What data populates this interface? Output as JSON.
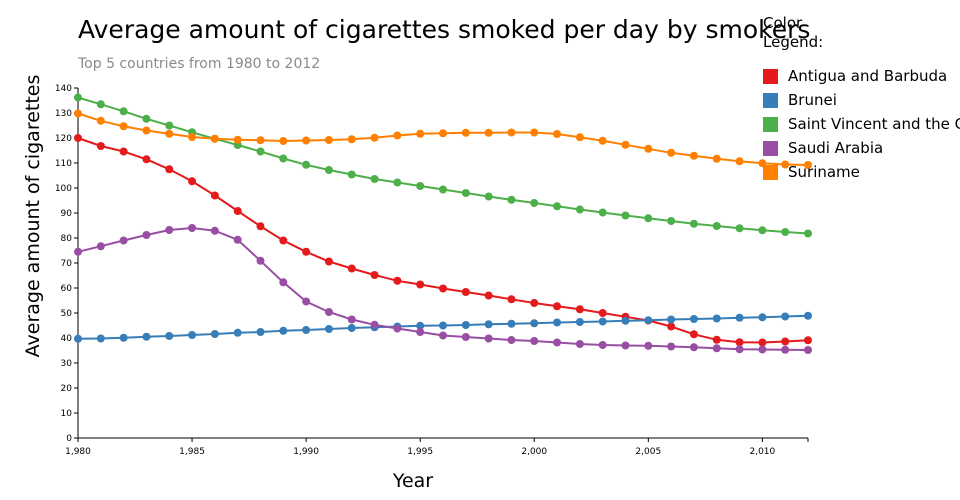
{
  "chart_data": {
    "type": "line",
    "title": "Average amount of cigarettes smoked per day by smokers",
    "subtitle": "Top 5 countries from 1980 to 2012",
    "xlabel": "Year",
    "ylabel": "Average amount of cigarettes",
    "legend_title_lines": [
      "Color",
      "Legend:"
    ],
    "legend_position": "top-right",
    "x": [
      1980,
      1981,
      1982,
      1983,
      1984,
      1985,
      1986,
      1987,
      1988,
      1989,
      1990,
      1991,
      1992,
      1993,
      1994,
      1995,
      1996,
      1997,
      1998,
      1999,
      2000,
      2001,
      2002,
      2003,
      2004,
      2005,
      2006,
      2007,
      2008,
      2009,
      2010,
      2011,
      2012
    ],
    "xlim": [
      1980,
      2012
    ],
    "ylim": [
      0,
      140
    ],
    "x_ticks": [
      1980,
      1985,
      1990,
      1995,
      2000,
      2005,
      2010
    ],
    "x_tick_labels": [
      "1,980",
      "1,985",
      "1,990",
      "1,995",
      "2,000",
      "2,005",
      "2,010"
    ],
    "y_ticks": [
      0,
      10,
      20,
      30,
      40,
      50,
      60,
      70,
      80,
      90,
      100,
      110,
      120,
      130,
      140
    ],
    "grid": false,
    "series": [
      {
        "name": "Antigua and Barbuda",
        "color": "#e41a1c",
        "values": [
          120,
          116.8,
          114.6,
          111.5,
          107.5,
          102.7,
          97,
          90.8,
          84.7,
          79,
          74.5,
          70.6,
          67.8,
          65.2,
          62.9,
          61.4,
          59.8,
          58.4,
          57,
          55.5,
          54,
          52.7,
          51.5,
          50,
          48.5,
          47,
          44.6,
          41.5,
          39.3,
          38.3,
          38.2,
          38.6,
          39.1
        ]
      },
      {
        "name": "Brunei",
        "color": "#377eb8",
        "values": [
          39.7,
          39.8,
          40.1,
          40.5,
          40.8,
          41.2,
          41.6,
          42.1,
          42.4,
          42.9,
          43.2,
          43.6,
          44,
          44.3,
          44.6,
          44.9,
          45,
          45.2,
          45.5,
          45.7,
          45.9,
          46.2,
          46.4,
          46.6,
          46.9,
          47.1,
          47.4,
          47.6,
          47.8,
          48.1,
          48.3,
          48.6,
          48.9
        ]
      },
      {
        "name": "Saint Vincent and the Grenadines",
        "color": "#4daf4a",
        "values": [
          136.2,
          133.5,
          130.7,
          127.7,
          125,
          122.3,
          119.7,
          117.2,
          114.6,
          111.8,
          109.3,
          107.2,
          105.4,
          103.6,
          102.2,
          100.8,
          99.4,
          98,
          96.6,
          95.3,
          94,
          92.7,
          91.4,
          90.2,
          89,
          87.9,
          86.8,
          85.7,
          84.8,
          83.9,
          83.1,
          82.4,
          81.8
        ]
      },
      {
        "name": "Saudi Arabia",
        "color": "#984ea3",
        "values": [
          74.5,
          76.7,
          79,
          81.2,
          83.2,
          84,
          82.9,
          79.3,
          70.9,
          62.3,
          54.6,
          50.4,
          47.4,
          45.3,
          43.8,
          42.4,
          41,
          40.4,
          39.8,
          39.2,
          38.8,
          38.2,
          37.6,
          37.2,
          37,
          36.9,
          36.6,
          36.3,
          35.9,
          35.5,
          35.4,
          35.3,
          35.2
        ]
      },
      {
        "name": "Suriname",
        "color": "#ff7f00",
        "values": [
          129.8,
          126.9,
          124.7,
          123,
          121.7,
          120.4,
          119.7,
          119.3,
          119.1,
          118.8,
          119,
          119.2,
          119.5,
          120.1,
          121,
          121.7,
          121.9,
          122.1,
          122.1,
          122.2,
          122.2,
          121.6,
          120.3,
          118.9,
          117.3,
          115.7,
          114.1,
          112.9,
          111.7,
          110.7,
          109.9,
          109.4,
          109.2
        ]
      }
    ]
  }
}
